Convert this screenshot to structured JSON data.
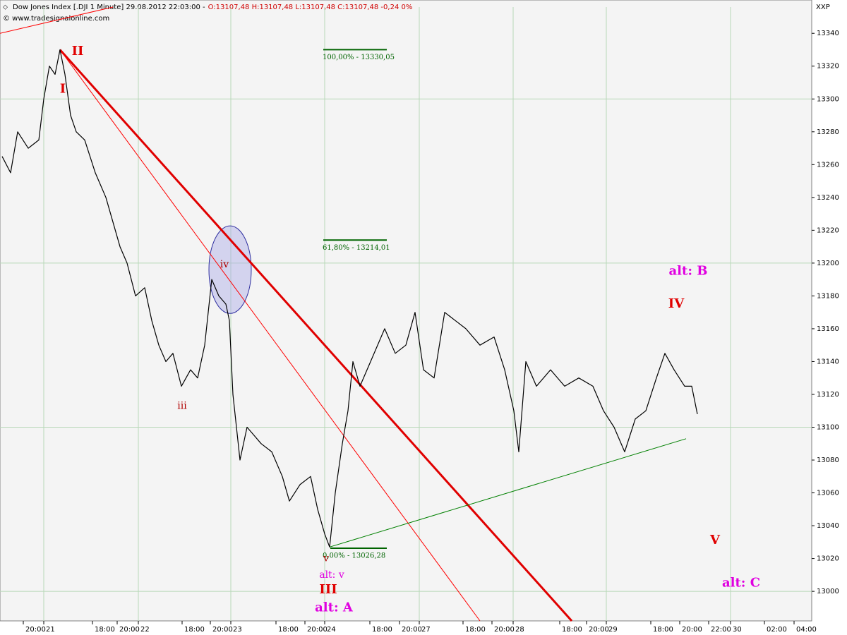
{
  "chart_data": {
    "type": "line",
    "header": {
      "title": "Dow Jones Index [.DJI  1 Minute] 29.08.2012 22:03:00 -",
      "ohlc": "O:13107,48 H:13107,48 L:13107,48 C:13107,48 -0,24 0%",
      "copyright": "© www.tradesignalonline.com",
      "currency": "XXP"
    },
    "xlim": [
      0,
      115
    ],
    "ylim": [
      12982,
      13356
    ],
    "xticks": [
      {
        "value": 3.3,
        "label": "20:00"
      },
      {
        "value": 6.2,
        "label": "21"
      },
      {
        "value": 13.1,
        "label": "18:00"
      },
      {
        "value": 16.6,
        "label": "20:00"
      },
      {
        "value": 19.6,
        "label": "22"
      },
      {
        "value": 25.8,
        "label": "18:00"
      },
      {
        "value": 29.8,
        "label": "20:00"
      },
      {
        "value": 32.7,
        "label": "23"
      },
      {
        "value": 39.1,
        "label": "18:00"
      },
      {
        "value": 43.2,
        "label": "20:00"
      },
      {
        "value": 46.0,
        "label": "24"
      },
      {
        "value": 52.4,
        "label": "18:00"
      },
      {
        "value": 56.6,
        "label": "20:00"
      },
      {
        "value": 59.4,
        "label": "27"
      },
      {
        "value": 65.6,
        "label": "18:00"
      },
      {
        "value": 69.7,
        "label": "20:00"
      },
      {
        "value": 72.7,
        "label": "28"
      },
      {
        "value": 79.3,
        "label": "18:00"
      },
      {
        "value": 83.1,
        "label": "20:00"
      },
      {
        "value": 85.9,
        "label": "29"
      },
      {
        "value": 92.2,
        "label": "18:00"
      },
      {
        "value": 96.3,
        "label": "20:00"
      },
      {
        "value": 100.4,
        "label": "22:00"
      },
      {
        "value": 103.5,
        "label": "30"
      },
      {
        "value": 108.3,
        "label": "02:00"
      },
      {
        "value": 112.5,
        "label": "04:00"
      }
    ],
    "yticks": [
      13000,
      13020,
      13040,
      13060,
      13080,
      13100,
      13120,
      13140,
      13160,
      13180,
      13200,
      13220,
      13240,
      13260,
      13280,
      13300,
      13320,
      13340
    ],
    "grid": true,
    "series": [
      {
        "color": "#000000",
        "x": [
          0.3,
          1.5,
          2.5,
          4.0,
          5.5,
          6.2,
          7.0,
          7.8,
          8.5,
          9.2,
          10.0,
          10.8,
          12.0,
          13.5,
          15.0,
          16.0,
          17.0,
          18.0,
          19.2,
          20.5,
          21.5,
          22.5,
          23.5,
          24.5,
          25.7,
          27.0,
          28.0,
          29.0,
          30.0,
          31.0,
          32.0,
          32.5,
          33.0,
          34.0,
          35.0,
          36.0,
          37.0,
          38.5,
          40.0,
          41.0,
          42.5,
          44.0,
          45.0,
          46.0,
          46.7,
          47.5,
          48.5,
          49.3,
          50.0,
          51.0,
          52.5,
          54.5,
          56.0,
          57.5,
          58.8,
          60.0,
          61.5,
          63.0,
          64.5,
          66.0,
          68.0,
          70.0,
          71.5,
          72.8,
          73.5,
          74.5,
          76.0,
          78.0,
          80.0,
          82.0,
          84.0,
          85.5,
          87.0,
          88.5,
          90.0,
          91.5,
          93.0,
          94.2,
          95.5,
          97.0,
          98.0,
          98.8
        ],
        "values": [
          13265,
          13255,
          13280,
          13270,
          13275,
          13300,
          13320,
          13315,
          13330,
          13315,
          13290,
          13280,
          13275,
          13255,
          13240,
          13225,
          13210,
          13200,
          13180,
          13185,
          13165,
          13150,
          13140,
          13145,
          13125,
          13135,
          13130,
          13150,
          13190,
          13180,
          13175,
          13165,
          13120,
          13080,
          13100,
          13095,
          13090,
          13085,
          13070,
          13055,
          13065,
          13070,
          13050,
          13035,
          13027,
          13060,
          13090,
          13110,
          13140,
          13125,
          13140,
          13160,
          13145,
          13150,
          13170,
          13135,
          13130,
          13170,
          13165,
          13160,
          13150,
          13155,
          13135,
          13110,
          13085,
          13140,
          13125,
          13135,
          13125,
          13130,
          13125,
          13110,
          13100,
          13085,
          13105,
          13110,
          13130,
          13145,
          13135,
          13125,
          13125,
          13108
        ]
      }
    ],
    "fib_levels": [
      {
        "label": "100,00% - 13330,05",
        "value": 13330.05,
        "x": [
          45.8,
          54.8
        ],
        "color": "#006400"
      },
      {
        "label": "61,80% - 13214,01",
        "value": 13214.01,
        "x": [
          45.8,
          54.8
        ],
        "color": "#006400"
      },
      {
        "label": "0,00% - 13026,28",
        "value": 13026.28,
        "x": [
          46.8,
          54.8
        ],
        "color": "#006400"
      }
    ],
    "trendlines": [
      {
        "color": "#e00000",
        "weight": "bold",
        "points": [
          [
            8.5,
            13330
          ],
          [
            81.0,
            12982
          ]
        ]
      },
      {
        "color": "#ff0000",
        "weight": "normal",
        "points": [
          [
            8.5,
            13330
          ],
          [
            68.0,
            12982
          ]
        ]
      },
      {
        "color": "#ff0000",
        "weight": "normal",
        "points": [
          [
            0.0,
            13340
          ],
          [
            16.0,
            13356
          ]
        ]
      },
      {
        "color": "#008000",
        "weight": "normal",
        "points": [
          [
            46.7,
            13027
          ],
          [
            97.2,
            13093
          ]
        ]
      }
    ],
    "highlight": {
      "cx": 32.6,
      "cy": 13196,
      "rx": 3.0,
      "ry": 26.7,
      "color": "#3030a0"
    },
    "annotations": [
      {
        "text": "II",
        "x": 11.0,
        "y": 13329,
        "color": "#e00000",
        "weight": "bold"
      },
      {
        "text": "I",
        "x": 8.9,
        "y": 13306,
        "color": "#e00000",
        "weight": "bold"
      },
      {
        "text": "iv",
        "x": 31.8,
        "y": 13199,
        "color": "#b00000",
        "weight": "normal"
      },
      {
        "text": "iii",
        "x": 25.8,
        "y": 13113,
        "color": "#b00000",
        "weight": "normal"
      },
      {
        "text": "v",
        "x": 46.2,
        "y": 13020,
        "color": "#b00000",
        "weight": "normal"
      },
      {
        "text": "alt: v",
        "x": 47.0,
        "y": 13010,
        "color": "#e000e0",
        "weight": "normal"
      },
      {
        "text": "III",
        "x": 46.5,
        "y": 13001,
        "color": "#e00000",
        "weight": "bold"
      },
      {
        "text": "alt: A",
        "x": 47.3,
        "y": 12990,
        "color": "#e000e0",
        "weight": "bold"
      },
      {
        "text": "alt: B",
        "x": 97.5,
        "y": 13195,
        "color": "#e000e0",
        "weight": "bold"
      },
      {
        "text": "IV",
        "x": 95.8,
        "y": 13175,
        "color": "#e00000",
        "weight": "bold"
      },
      {
        "text": "V",
        "x": 101.3,
        "y": 13031,
        "color": "#e00000",
        "weight": "bold"
      },
      {
        "text": "alt: C",
        "x": 105.0,
        "y": 13005,
        "color": "#e000e0",
        "weight": "bold"
      }
    ]
  }
}
